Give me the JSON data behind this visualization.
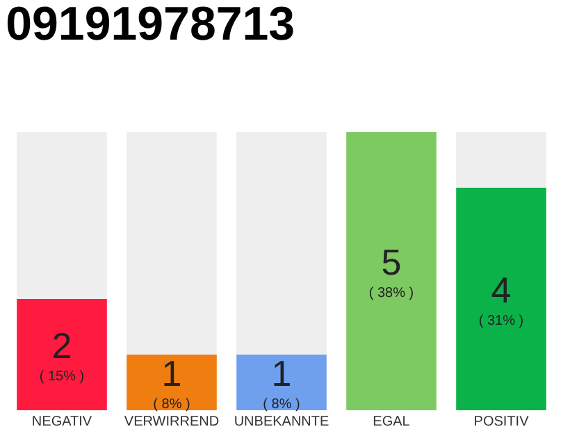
{
  "chart_data": {
    "type": "bar",
    "title": "09191978713",
    "categories": [
      "NEGATIV",
      "VERWIRREND",
      "UNBEKANNTE",
      "EGAL",
      "POSITIV"
    ],
    "values": [
      2,
      1,
      1,
      5,
      4
    ],
    "colors": [
      "#ff1a40",
      "#f07d10",
      "#6ea0ee",
      "#7dc962",
      "#0bb24a"
    ],
    "value_labels": [
      "2\n( 15% )",
      "1\n( 8% )",
      "1\n( 8% )",
      "5\n( 38% )",
      "4\n( 31% )"
    ],
    "ylim": [
      0,
      5
    ],
    "tick_labels": "x",
    "grid": false,
    "legend": false
  }
}
